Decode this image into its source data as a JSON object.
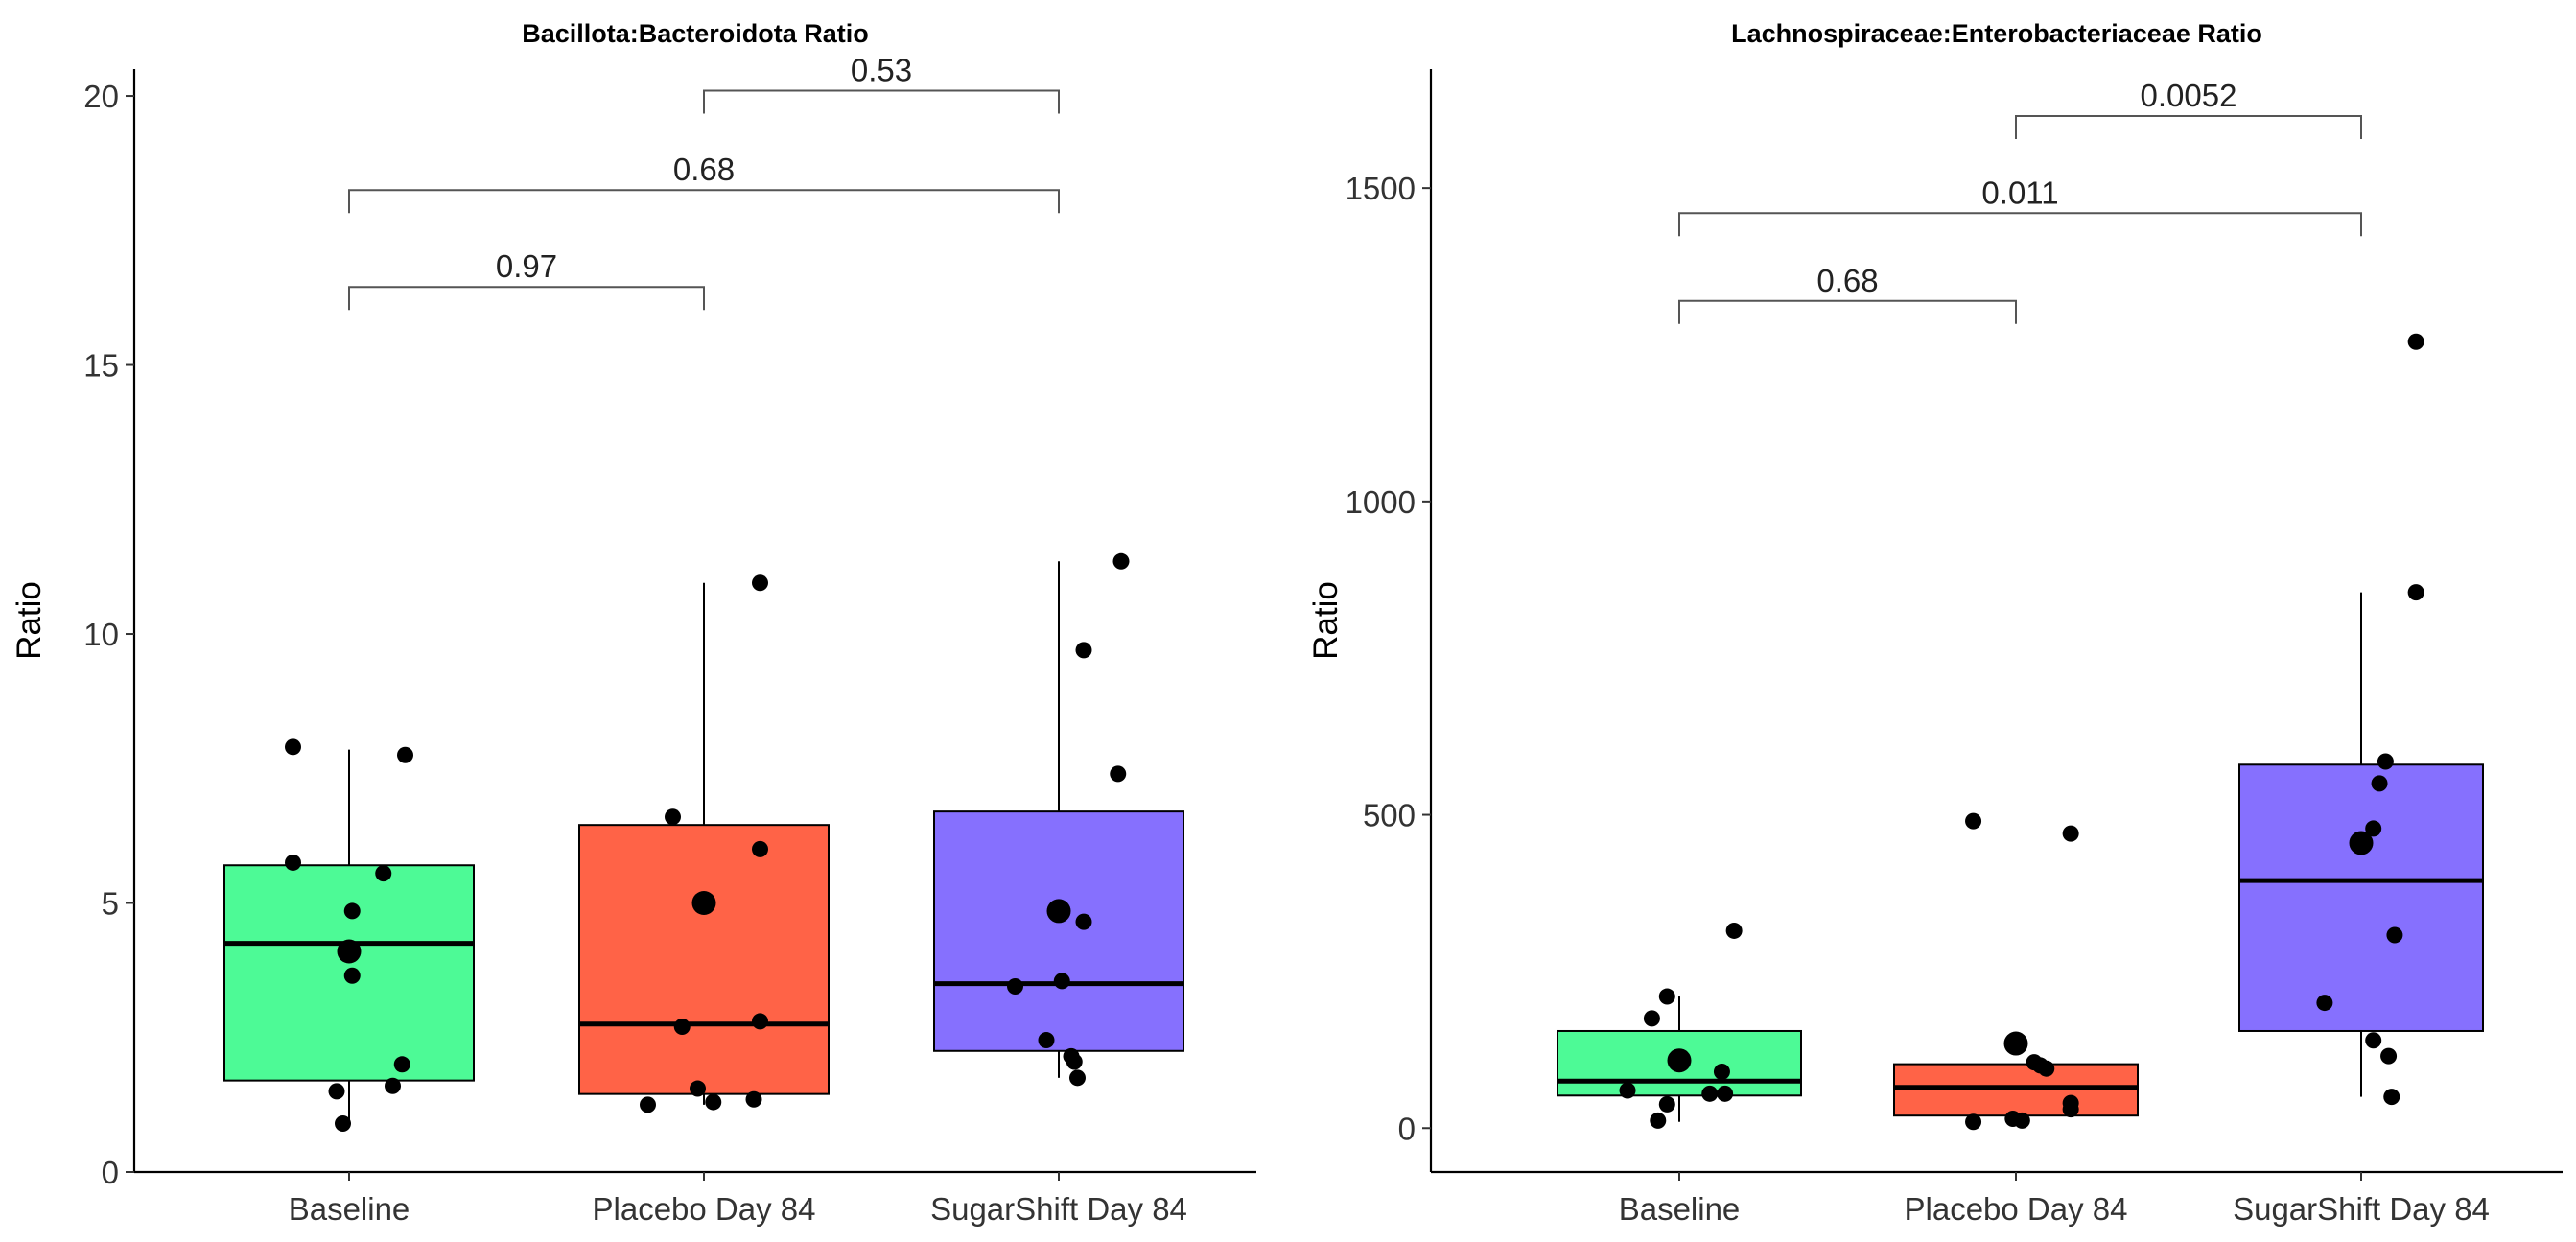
{
  "chart_data": [
    {
      "type": "boxplot",
      "title": "Bacillota:Bacteroidota Ratio",
      "xlabel": "",
      "ylabel": "Ratio",
      "ylim": [
        0,
        20.5
      ],
      "yticks": [
        0,
        5,
        10,
        15,
        20
      ],
      "categories": [
        "Baseline",
        "Placebo Day 84",
        "SugarShift Day 84"
      ],
      "colors": [
        "#4dfa96",
        "#ff6347",
        "#8670fe"
      ],
      "boxes": [
        {
          "q1": 1.7,
          "median": 4.25,
          "q3": 5.7,
          "whisker_low": 0.9,
          "whisker_high": 7.85,
          "mean": 4.1
        },
        {
          "q1": 1.45,
          "median": 2.75,
          "q3": 6.45,
          "whisker_low": 1.25,
          "whisker_high": 10.95,
          "mean": 5.0
        },
        {
          "q1": 2.25,
          "median": 3.5,
          "q3": 6.7,
          "whisker_low": 1.75,
          "whisker_high": 11.35,
          "mean": 4.85
        }
      ],
      "points": [
        [
          [
            -0.18,
            7.9
          ],
          [
            0.18,
            7.75
          ],
          [
            -0.18,
            5.75
          ],
          [
            0.11,
            5.55
          ],
          [
            0.01,
            4.85
          ],
          [
            0.01,
            3.65
          ],
          [
            0.17,
            2.0
          ],
          [
            0.14,
            1.6
          ],
          [
            -0.04,
            1.5
          ],
          [
            -0.02,
            0.9
          ]
        ],
        [
          [
            0.18,
            10.95
          ],
          [
            -0.1,
            6.6
          ],
          [
            0.18,
            6.0
          ],
          [
            0.18,
            2.8
          ],
          [
            -0.07,
            2.7
          ],
          [
            -0.02,
            1.55
          ],
          [
            0.03,
            1.3
          ],
          [
            0.16,
            1.35
          ],
          [
            -0.18,
            1.25
          ]
        ],
        [
          [
            0.2,
            11.35
          ],
          [
            0.08,
            9.7
          ],
          [
            0.19,
            7.4
          ],
          [
            0.08,
            4.65
          ],
          [
            0.01,
            3.55
          ],
          [
            -0.14,
            3.45
          ],
          [
            -0.04,
            2.45
          ],
          [
            0.04,
            2.15
          ],
          [
            0.05,
            2.05
          ],
          [
            0.06,
            1.75
          ]
        ]
      ],
      "comparisons": [
        {
          "groups": [
            0,
            1
          ],
          "label": "0.97",
          "y": 16.45
        },
        {
          "groups": [
            0,
            2
          ],
          "label": "0.68",
          "y": 18.25
        },
        {
          "groups": [
            1,
            2
          ],
          "label": "0.53",
          "y": 20.1
        }
      ]
    },
    {
      "type": "boxplot",
      "title": "Lachnospiraceae:Enterobacteriaceae Ratio",
      "xlabel": "",
      "ylabel": "Ratio",
      "ylim": [
        -70,
        1690
      ],
      "yticks": [
        0,
        500,
        1000,
        1500
      ],
      "categories": [
        "Baseline",
        "Placebo Day 84",
        "SugarShift Day 84"
      ],
      "colors": [
        "#4dfa96",
        "#ff6347",
        "#8670fe"
      ],
      "boxes": [
        {
          "q1": 52,
          "median": 75,
          "q3": 155,
          "whisker_low": 10,
          "whisker_high": 210,
          "mean": 108
        },
        {
          "q1": 20,
          "median": 65,
          "q3": 102,
          "whisker_low": 10,
          "whisker_high": 102,
          "mean": 135
        },
        {
          "q1": 155,
          "median": 395,
          "q3": 580,
          "whisker_low": 50,
          "whisker_high": 855,
          "mean": 455
        }
      ],
      "points": [
        [
          [
            0.18,
            315
          ],
          [
            -0.04,
            210
          ],
          [
            -0.09,
            175
          ],
          [
            0.14,
            90
          ],
          [
            0.15,
            55
          ],
          [
            0.1,
            55
          ],
          [
            -0.17,
            60
          ],
          [
            -0.04,
            38
          ],
          [
            -0.07,
            12
          ]
        ],
        [
          [
            -0.14,
            490
          ],
          [
            0.18,
            470
          ],
          [
            0.06,
            105
          ],
          [
            0.08,
            100
          ],
          [
            0.1,
            95
          ],
          [
            0.18,
            40
          ],
          [
            0.18,
            30
          ],
          [
            -0.01,
            15
          ],
          [
            0.02,
            12
          ],
          [
            -0.14,
            10
          ]
        ],
        [
          [
            0.18,
            1255
          ],
          [
            0.18,
            855
          ],
          [
            0.08,
            585
          ],
          [
            0.06,
            550
          ],
          [
            0.04,
            478
          ],
          [
            0.11,
            308
          ],
          [
            -0.12,
            200
          ],
          [
            0.04,
            140
          ],
          [
            0.09,
            115
          ],
          [
            0.1,
            50
          ]
        ]
      ],
      "comparisons": [
        {
          "groups": [
            0,
            1
          ],
          "label": "0.68",
          "y": 1320
        },
        {
          "groups": [
            0,
            2
          ],
          "label": "0.011",
          "y": 1460
        },
        {
          "groups": [
            1,
            2
          ],
          "label": "0.0052",
          "y": 1615
        }
      ]
    }
  ]
}
